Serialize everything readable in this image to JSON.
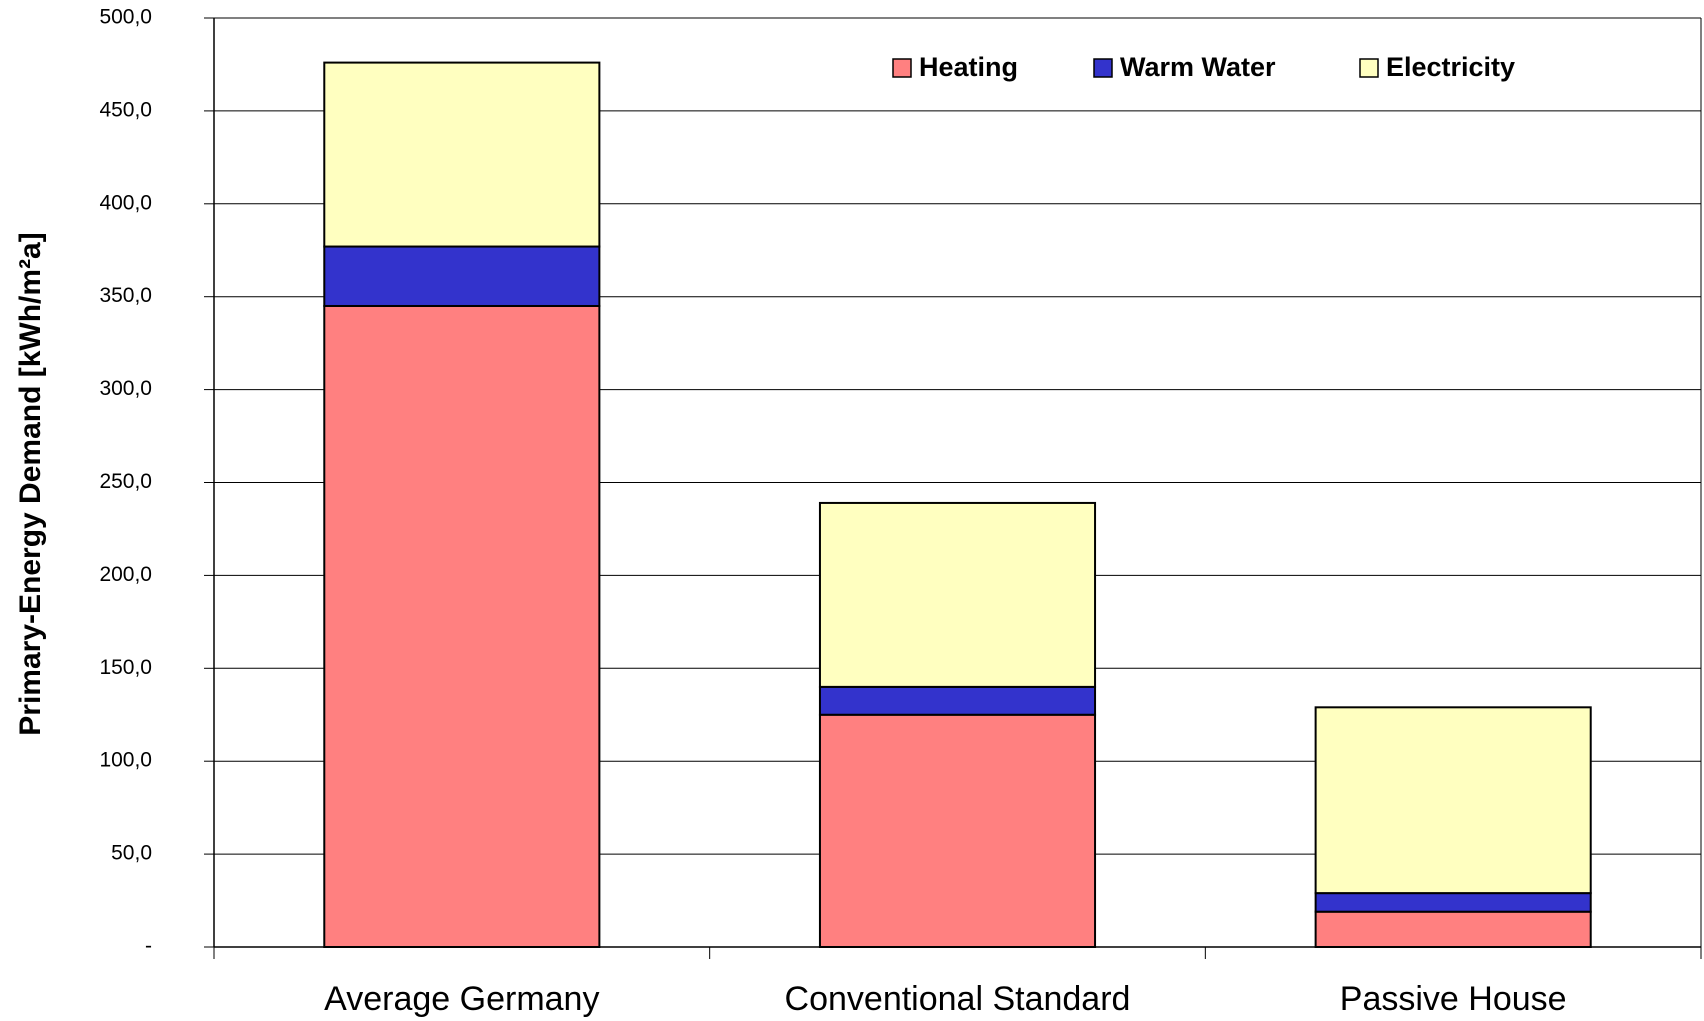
{
  "chart_data": {
    "type": "stacked_bar",
    "y_label": "Primary-Energy Demand [kWh/m²a]",
    "categories": [
      "Average Germany",
      "Conventional Standard",
      "Passive House"
    ],
    "series": [
      {
        "name": "Heating",
        "color": "#ff8080",
        "values": [
          345,
          125,
          19
        ]
      },
      {
        "name": "Warm Water",
        "color": "#3333cc",
        "values": [
          32,
          15,
          10
        ]
      },
      {
        "name": "Electricity",
        "color": "#ffffc0",
        "values": [
          99,
          99,
          100
        ]
      }
    ],
    "ylim": [
      0,
      500
    ],
    "yticks": [
      {
        "value": 0,
        "label": "-"
      },
      {
        "value": 50,
        "label": "50,0"
      },
      {
        "value": 100,
        "label": "100,0"
      },
      {
        "value": 150,
        "label": "150,0"
      },
      {
        "value": 200,
        "label": "200,0"
      },
      {
        "value": 250,
        "label": "250,0"
      },
      {
        "value": 300,
        "label": "300,0"
      },
      {
        "value": 350,
        "label": "350,0"
      },
      {
        "value": 400,
        "label": "400,0"
      },
      {
        "value": 450,
        "label": "450,0"
      },
      {
        "value": 500,
        "label": "500,0"
      }
    ],
    "grid": true,
    "legend": "top"
  }
}
